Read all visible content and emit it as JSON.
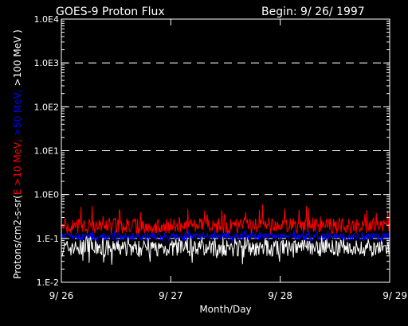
{
  "chart_data": {
    "type": "line",
    "title": "GOES-9 Proton Flux",
    "begin_label": "Begin: 9/ 26/ 1997",
    "xlabel": "Month/Day",
    "ylabel_parts": [
      {
        "text": "Protons/cm2-s-sr(",
        "color": "#ffffff"
      },
      {
        "text": "E >10 MeV, ",
        "color": "#ff0000"
      },
      {
        "text": ">50 MeV, ",
        "color": "#0000ff"
      },
      {
        "text": ">100 MeV )",
        "color": "#ffffff"
      }
    ],
    "y_scale": "log",
    "ylim": [
      0.01,
      10000
    ],
    "y_ticks": [
      {
        "value": 0.01,
        "label": "1.E-2"
      },
      {
        "value": 0.1,
        "label": "1.E-1"
      },
      {
        "value": 1,
        "label": "1.0E0"
      },
      {
        "value": 10,
        "label": "1.0E1"
      },
      {
        "value": 100,
        "label": "1.0E2"
      },
      {
        "value": 1000,
        "label": "1.0E3"
      },
      {
        "value": 10000,
        "label": "1.0E4"
      }
    ],
    "dashed_grid_values": [
      0.1,
      1,
      10,
      100,
      1000
    ],
    "xlim": [
      "1997-09-26",
      "1997-09-29"
    ],
    "x_ticks": [
      {
        "value": 0,
        "label": "9/ 26"
      },
      {
        "value": 1,
        "label": "9/ 27"
      },
      {
        "value": 2,
        "label": "9/ 28"
      },
      {
        "value": 3,
        "label": "9/ 29"
      }
    ],
    "series": [
      {
        "name": "E >10 MeV",
        "color": "#ff0000",
        "typical": 0.19,
        "range": [
          0.13,
          0.6
        ]
      },
      {
        "name": ">50 MeV",
        "color": "#0000ff",
        "typical": 0.11,
        "range": [
          0.08,
          0.16
        ]
      },
      {
        "name": ">100 MeV",
        "color": "#ffffff",
        "typical": 0.06,
        "range": [
          0.025,
          0.12
        ]
      }
    ]
  }
}
